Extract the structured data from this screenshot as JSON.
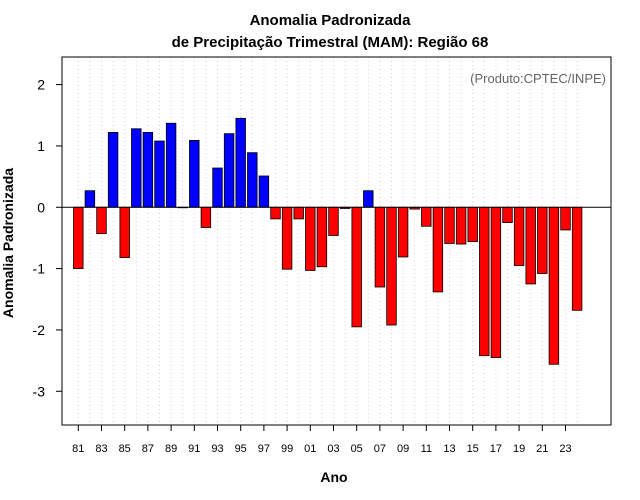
{
  "colors": {
    "positive": "#0000ff",
    "negative": "#ff0000",
    "zero_line": "#000000",
    "grid": "#d3d3d3",
    "credit": "#666666"
  },
  "chart_data": {
    "type": "bar",
    "title": "Anomalia Padronizada",
    "subtitle": "de Precipitação Trimestral (MAM): Região 68",
    "xlabel": "Ano",
    "ylabel": "Anomalia Padronizada",
    "credit": "(Produto:CPTEC/INPE)",
    "ylim": [
      -3.55,
      2.45
    ],
    "yticks": [
      2,
      1,
      0,
      -1,
      -2,
      -3
    ],
    "ytick_labels": [
      "2",
      "1",
      "0",
      "-1",
      "-2",
      "-3"
    ],
    "grid": "vertical dotted",
    "categories": [
      "1981",
      "1982",
      "1983",
      "1984",
      "1985",
      "1986",
      "1987",
      "1988",
      "1989",
      "1990",
      "1991",
      "1992",
      "1993",
      "1994",
      "1995",
      "1996",
      "1997",
      "1998",
      "1999",
      "2000",
      "2001",
      "2002",
      "2003",
      "2004",
      "2005",
      "2006",
      "2007",
      "2008",
      "2009",
      "2010",
      "2011",
      "2012",
      "2013",
      "2014",
      "2015",
      "2016",
      "2017",
      "2018",
      "2019",
      "2020",
      "2021",
      "2022",
      "2023",
      "2024"
    ],
    "values": [
      -1.0,
      0.27,
      -0.43,
      1.22,
      -0.82,
      1.28,
      1.22,
      1.08,
      1.37,
      0.0,
      1.09,
      -0.33,
      0.64,
      1.2,
      1.45,
      0.89,
      0.51,
      -0.19,
      -1.01,
      -0.19,
      -1.03,
      -0.97,
      -0.46,
      -0.02,
      -1.95,
      0.27,
      -1.3,
      -1.92,
      -0.81,
      -0.03,
      -0.31,
      -1.38,
      -0.59,
      -0.6,
      -0.56,
      -2.42,
      -2.45,
      -0.25,
      -0.95,
      -1.25,
      -1.08,
      -2.56,
      -0.37,
      -1.68
    ],
    "xtick_labels": [
      "81",
      "83",
      "85",
      "87",
      "89",
      "91",
      "93",
      "95",
      "97",
      "99",
      "01",
      "03",
      "05",
      "07",
      "09",
      "11",
      "13",
      "15",
      "17",
      "19",
      "21",
      "23"
    ]
  }
}
